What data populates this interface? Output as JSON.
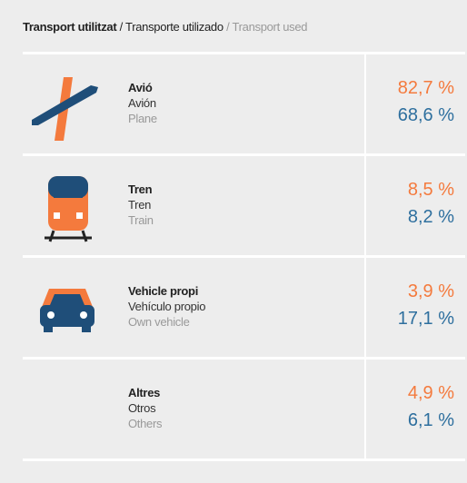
{
  "header": {
    "parts": [
      "Transport utilitzat",
      "/ Transporte utilizado",
      "/ Transport used"
    ]
  },
  "rows": [
    {
      "ca": "Avió",
      "es": "Avión",
      "en": "Plane",
      "top": "82,7 %",
      "bottom": "68,6 %"
    },
    {
      "ca": "Tren",
      "es": "Tren",
      "en": "Train",
      "top": "8,5 %",
      "bottom": "8,2 %"
    },
    {
      "ca": "Vehicle propi",
      "es": "Vehículo propio",
      "en": "Own vehicle",
      "top": "3,9 %",
      "bottom": "17,1 %"
    },
    {
      "ca": "Altres",
      "es": "Otros",
      "en": "Others",
      "top": "4,9 %",
      "bottom": "6,1 %"
    }
  ]
}
